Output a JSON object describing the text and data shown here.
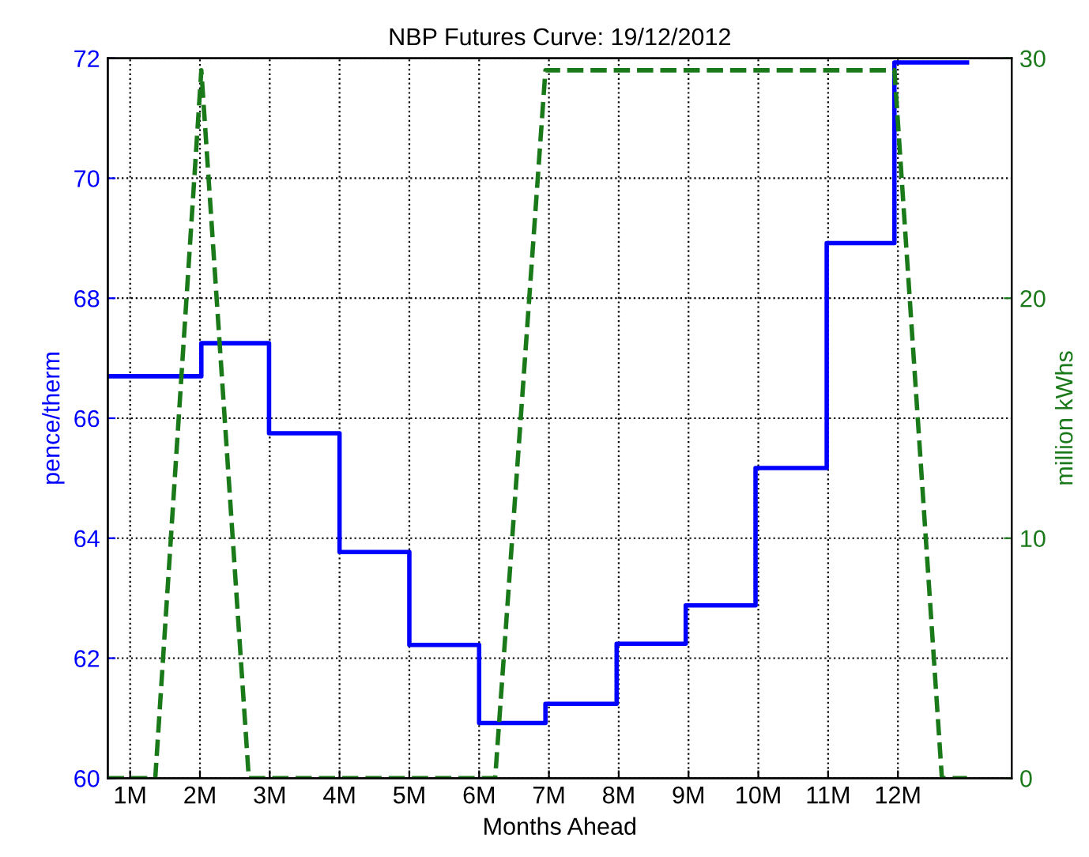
{
  "chart_data": {
    "type": "step",
    "title": "NBP Futures Curve: 19/12/2012",
    "xlabel": "Months Ahead",
    "ylabel": "pence/therm",
    "y2label": "million kWhs",
    "series": [
      {
        "color": "#0000ff",
        "line_style": "solid",
        "x": [
          0.68,
          2.02,
          2.99,
          4,
          5,
          6,
          6.95,
          7.97,
          8.96,
          9.96,
          10.98,
          11.95,
          12.99
        ],
        "values": [
          66.7,
          67.25,
          65.75,
          63.77,
          62.22,
          60.92,
          61.24,
          62.24,
          62.88,
          65.17,
          68.92,
          71.93,
          71.93
        ]
      },
      {
        "type": "line",
        "axis": "y2",
        "color": "#1a7a1a",
        "line_style": "dashed",
        "x": [
          0.68,
          1.36,
          2.02,
          2.7,
          6.23,
          6.95,
          11.95,
          12.63,
          12.99
        ],
        "values": [
          0,
          0,
          29.5,
          0,
          0,
          29.5,
          29.5,
          0,
          0
        ]
      }
    ],
    "xlim": [
      0.68,
      13.63
    ],
    "xticks": [
      {
        "value": 1,
        "label": "1M"
      },
      {
        "value": 2,
        "label": "2M"
      },
      {
        "value": 3,
        "label": "3M"
      },
      {
        "value": 4,
        "label": "4M"
      },
      {
        "value": 5,
        "label": "5M"
      },
      {
        "value": 6,
        "label": "6M"
      },
      {
        "value": 7,
        "label": "7M"
      },
      {
        "value": 8,
        "label": "8M"
      },
      {
        "value": 9,
        "label": "9M"
      },
      {
        "value": 10,
        "label": "10M"
      },
      {
        "value": 11,
        "label": "11M"
      },
      {
        "value": 12,
        "label": "12M"
      }
    ],
    "ylim": [
      60,
      72
    ],
    "yticks": [
      60,
      62,
      64,
      66,
      68,
      70,
      72
    ],
    "y2lim": [
      0,
      30
    ],
    "y2ticks": [
      0,
      10,
      20,
      30
    ],
    "grid": true,
    "legend": false
  }
}
